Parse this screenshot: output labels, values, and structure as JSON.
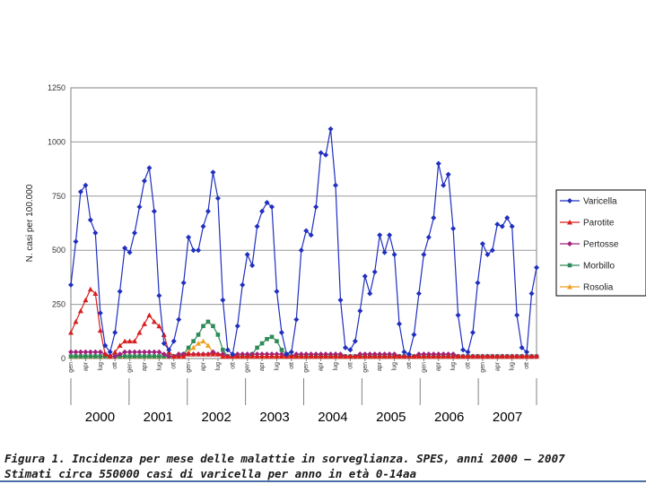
{
  "caption": {
    "line1": "Figura 1. Incidenza per mese delle malattie in sorveglianza. SPES, anni 2000 – 2007",
    "line2": "Stimati circa 550000 casi di varicella per anno in età 0-14aa"
  },
  "chart_data": {
    "type": "line",
    "ylabel": "N. casi per 100.000",
    "ylim": [
      0,
      1250
    ],
    "yticks": [
      0,
      250,
      500,
      750,
      1000,
      1250
    ],
    "grid": true,
    "legend_position": "right",
    "years": [
      "2000",
      "2001",
      "2002",
      "2003",
      "2004",
      "2005",
      "2006",
      "2007"
    ],
    "month_tick_labels": [
      "gen",
      "apr",
      "lug",
      "ott",
      "gen",
      "apr",
      "lug",
      "ott",
      "gen",
      "apr",
      "lug",
      "ott",
      "gen",
      "apr",
      "lug",
      "ott",
      "gen",
      "apr",
      "lug",
      "ott",
      "gen",
      "apr",
      "lug",
      "ott",
      "gen",
      "apr",
      "lug",
      "ott",
      "gen",
      "apr",
      "lug",
      "ott"
    ],
    "x_start": "2000-01",
    "x_end": "2007-12",
    "series": [
      {
        "name": "Varicella",
        "color": "#1f2fbf",
        "marker": "diamond",
        "values": [
          340,
          540,
          770,
          800,
          640,
          580,
          210,
          60,
          30,
          120,
          310,
          510,
          490,
          580,
          700,
          820,
          880,
          680,
          290,
          70,
          40,
          80,
          180,
          350,
          560,
          500,
          500,
          610,
          680,
          860,
          740,
          270,
          40,
          20,
          150,
          340,
          480,
          430,
          610,
          680,
          720,
          700,
          310,
          120,
          20,
          30,
          180,
          500,
          590,
          570,
          700,
          950,
          940,
          1060,
          800,
          270,
          50,
          40,
          80,
          220,
          380,
          300,
          400,
          570,
          490,
          570,
          480,
          160,
          30,
          20,
          110,
          300,
          480,
          560,
          650,
          900,
          800,
          850,
          600,
          200,
          40,
          30,
          120,
          350,
          530,
          480,
          500,
          620,
          610,
          650,
          610,
          200,
          50,
          30,
          300,
          420
        ]
      },
      {
        "name": "Parotite",
        "color": "#d81f1f",
        "marker": "triangle",
        "values": [
          120,
          170,
          220,
          270,
          320,
          300,
          130,
          20,
          10,
          30,
          60,
          80,
          80,
          80,
          120,
          160,
          200,
          170,
          150,
          110,
          30,
          10,
          10,
          10,
          20,
          20,
          20,
          20,
          20,
          20,
          20,
          10,
          10,
          10,
          10,
          10,
          10,
          10,
          10,
          10,
          10,
          10,
          10,
          10,
          10,
          10,
          10,
          10,
          10,
          10,
          10,
          10,
          10,
          10,
          10,
          10,
          10,
          10,
          10,
          10,
          10,
          10,
          10,
          10,
          10,
          10,
          10,
          10,
          10,
          10,
          10,
          10,
          10,
          10,
          10,
          10,
          10,
          10,
          10,
          10,
          10,
          10,
          10,
          10,
          10,
          10,
          10,
          10,
          10,
          10,
          10,
          10,
          10,
          10,
          10,
          10
        ]
      },
      {
        "name": "Pertosse",
        "color": "#a0207a",
        "marker": "diamond",
        "values": [
          30,
          30,
          30,
          30,
          30,
          30,
          30,
          20,
          10,
          10,
          20,
          30,
          30,
          30,
          30,
          30,
          30,
          30,
          30,
          20,
          10,
          10,
          20,
          20,
          20,
          20,
          20,
          20,
          20,
          30,
          20,
          20,
          10,
          10,
          20,
          20,
          20,
          20,
          20,
          20,
          20,
          20,
          20,
          20,
          10,
          10,
          20,
          20,
          20,
          20,
          20,
          20,
          20,
          20,
          20,
          20,
          10,
          10,
          10,
          20,
          20,
          20,
          20,
          20,
          20,
          20,
          20,
          10,
          10,
          10,
          10,
          20,
          20,
          20,
          20,
          20,
          20,
          20,
          20,
          10,
          10,
          10,
          10,
          10,
          10,
          10,
          10,
          10,
          10,
          10,
          10,
          10,
          10,
          10,
          10,
          10
        ]
      },
      {
        "name": "Morbillo",
        "color": "#2e8b57",
        "marker": "square",
        "values": [
          10,
          10,
          10,
          10,
          10,
          10,
          10,
          10,
          10,
          10,
          10,
          10,
          10,
          10,
          10,
          10,
          10,
          10,
          10,
          10,
          10,
          10,
          10,
          20,
          50,
          80,
          110,
          150,
          170,
          150,
          110,
          40,
          10,
          10,
          10,
          10,
          10,
          20,
          50,
          70,
          90,
          100,
          80,
          40,
          20,
          10,
          10,
          10,
          10,
          10,
          10,
          10,
          10,
          10,
          10,
          10,
          10,
          10,
          10,
          10,
          10,
          10,
          10,
          10,
          10,
          10,
          10,
          10,
          10,
          10,
          10,
          10,
          10,
          10,
          10,
          10,
          10,
          10,
          10,
          10,
          10,
          10,
          10,
          10,
          10,
          10,
          10,
          10,
          10,
          10,
          10,
          10,
          10,
          10,
          10,
          10
        ]
      },
      {
        "name": "Rosolia",
        "color": "#f0a020",
        "marker": "triangle",
        "values": [
          10,
          10,
          10,
          10,
          10,
          10,
          10,
          10,
          10,
          10,
          10,
          10,
          10,
          10,
          10,
          10,
          10,
          10,
          10,
          10,
          10,
          10,
          10,
          20,
          30,
          50,
          70,
          80,
          60,
          30,
          20,
          10,
          10,
          10,
          10,
          10,
          10,
          10,
          10,
          10,
          10,
          10,
          10,
          10,
          10,
          10,
          10,
          10,
          10,
          10,
          10,
          10,
          10,
          10,
          10,
          10,
          10,
          10,
          10,
          10,
          10,
          10,
          10,
          10,
          10,
          10,
          10,
          10,
          10,
          10,
          10,
          10,
          10,
          10,
          10,
          10,
          10,
          10,
          10,
          10,
          10,
          10,
          10,
          10,
          10,
          10,
          10,
          10,
          10,
          10,
          10,
          10,
          10,
          10,
          10,
          10
        ]
      }
    ]
  }
}
